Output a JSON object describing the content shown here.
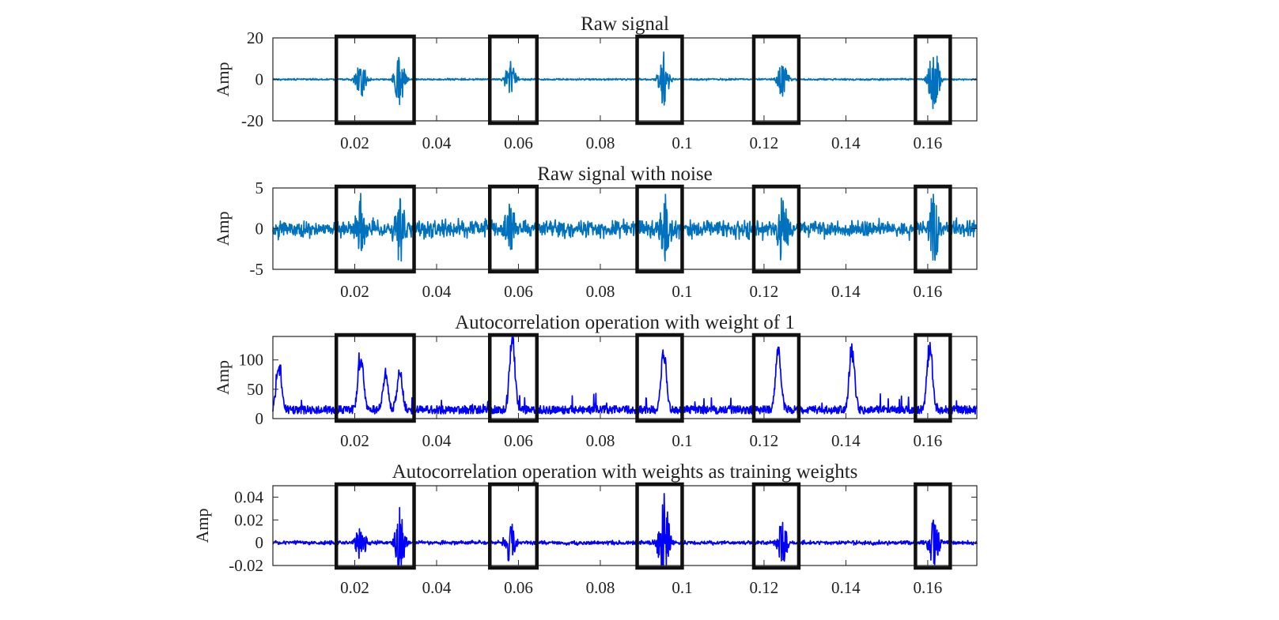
{
  "chart_data": [
    {
      "type": "line",
      "title": "Raw signal",
      "ylabel": "Amp",
      "xlim": [
        0,
        0.172
      ],
      "ylim": [
        -20,
        20
      ],
      "xticks": [
        0.02,
        0.04,
        0.06,
        0.08,
        0.1,
        0.12,
        0.14,
        0.16
      ],
      "xtick_labels": [
        "0.02",
        "0.04",
        "0.06",
        "0.08",
        "0.1",
        "0.12",
        "0.14",
        "0.16"
      ],
      "yticks": [
        -20,
        0,
        20
      ],
      "ytick_labels": [
        "-20",
        "0",
        "20"
      ],
      "line_color": "#0072BD",
      "baseline_noise": 0.6,
      "bursts": [
        {
          "x": 0.0215,
          "amp": 9
        },
        {
          "x": 0.031,
          "amp": 12
        },
        {
          "x": 0.058,
          "amp": 9
        },
        {
          "x": 0.0955,
          "amp": 13
        },
        {
          "x": 0.1245,
          "amp": 10
        },
        {
          "x": 0.1615,
          "amp": 16
        }
      ],
      "highlight_boxes": [
        [
          0.0155,
          0.0345
        ],
        [
          0.053,
          0.0645
        ],
        [
          0.089,
          0.1
        ],
        [
          0.1175,
          0.1285
        ],
        [
          0.157,
          0.1655
        ]
      ],
      "grid": false
    },
    {
      "type": "line",
      "title": "Raw signal with noise",
      "ylabel": "Amp",
      "xlim": [
        0,
        0.172
      ],
      "ylim": [
        -5,
        5
      ],
      "xticks": [
        0.02,
        0.04,
        0.06,
        0.08,
        0.1,
        0.12,
        0.14,
        0.16
      ],
      "xtick_labels": [
        "0.02",
        "0.04",
        "0.06",
        "0.08",
        "0.1",
        "0.12",
        "0.14",
        "0.16"
      ],
      "yticks": [
        -5,
        0,
        5
      ],
      "ytick_labels": [
        "-5",
        "0",
        "5"
      ],
      "line_color": "#0072BD",
      "baseline_noise": 1.5,
      "bursts": [
        {
          "x": 0.0215,
          "amp": 3.5
        },
        {
          "x": 0.031,
          "amp": 4.2
        },
        {
          "x": 0.058,
          "amp": 3.2
        },
        {
          "x": 0.0955,
          "amp": 4.8
        },
        {
          "x": 0.1245,
          "amp": 4.2
        },
        {
          "x": 0.1615,
          "amp": 4.3
        }
      ],
      "highlight_boxes": [
        [
          0.0155,
          0.0345
        ],
        [
          0.053,
          0.0645
        ],
        [
          0.089,
          0.1
        ],
        [
          0.1175,
          0.1285
        ],
        [
          0.157,
          0.1655
        ]
      ],
      "grid": false
    },
    {
      "type": "line",
      "title": "Autocorrelation operation with weight of 1",
      "ylabel": "Amp",
      "xlim": [
        0,
        0.172
      ],
      "ylim": [
        0,
        140
      ],
      "xticks": [
        0.02,
        0.04,
        0.06,
        0.08,
        0.1,
        0.12,
        0.14,
        0.16
      ],
      "xtick_labels": [
        "0.02",
        "0.04",
        "0.06",
        "0.08",
        "0.1",
        "0.12",
        "0.14",
        "0.16"
      ],
      "yticks": [
        0,
        50,
        100
      ],
      "ytick_labels": [
        "0",
        "50",
        "100"
      ],
      "line_color": "#0000FF",
      "peaks": [
        {
          "x": 0.0015,
          "h": 83
        },
        {
          "x": 0.0215,
          "h": 100
        },
        {
          "x": 0.0275,
          "h": 65
        },
        {
          "x": 0.031,
          "h": 74
        },
        {
          "x": 0.0585,
          "h": 140
        },
        {
          "x": 0.0955,
          "h": 115
        },
        {
          "x": 0.1235,
          "h": 120
        },
        {
          "x": 0.1415,
          "h": 118
        },
        {
          "x": 0.1605,
          "h": 120
        }
      ],
      "highlight_boxes": [
        [
          0.0155,
          0.0345
        ],
        [
          0.053,
          0.0645
        ],
        [
          0.089,
          0.1
        ],
        [
          0.1175,
          0.1285
        ],
        [
          0.157,
          0.1655
        ]
      ],
      "grid": false
    },
    {
      "type": "line",
      "title": "Autocorrelation operation with weights as training weights",
      "ylabel": "Amp",
      "xlim": [
        0,
        0.172
      ],
      "ylim": [
        -0.02,
        0.05
      ],
      "xticks": [
        0.02,
        0.04,
        0.06,
        0.08,
        0.1,
        0.12,
        0.14,
        0.16
      ],
      "xtick_labels": [
        "0.02",
        "0.04",
        "0.06",
        "0.08",
        "0.1",
        "0.12",
        "0.14",
        "0.16"
      ],
      "yticks": [
        -0.02,
        0,
        0.02,
        0.04
      ],
      "ytick_labels": [
        "-0.02",
        "0",
        "0.02",
        "0.04"
      ],
      "line_color": "#0000FF",
      "baseline_noise": 0.0025,
      "bursts": [
        {
          "x": 0.0215,
          "amp": 0.016
        },
        {
          "x": 0.031,
          "amp": 0.032
        },
        {
          "x": 0.058,
          "amp": 0.02
        },
        {
          "x": 0.0955,
          "amp": 0.047
        },
        {
          "x": 0.1245,
          "amp": 0.02
        },
        {
          "x": 0.1615,
          "amp": 0.022
        }
      ],
      "highlight_boxes": [
        [
          0.0155,
          0.0345
        ],
        [
          0.053,
          0.0645
        ],
        [
          0.089,
          0.1
        ],
        [
          0.1175,
          0.1285
        ],
        [
          0.157,
          0.1655
        ]
      ],
      "grid": false
    }
  ]
}
